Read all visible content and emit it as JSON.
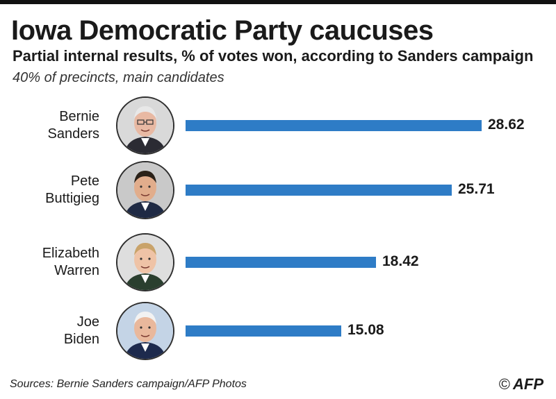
{
  "title": "Iowa Democratic Party caucuses",
  "subtitle": "Partial internal results, % of votes won, according to Sanders campaign",
  "note": "40% of precincts, main candidates",
  "source": "Sources: Bernie Sanders campaign/AFP Photos",
  "credit": {
    "copyright": "©",
    "logo": "AFP"
  },
  "colors": {
    "bar": "#2e7cc6"
  },
  "chart_data": {
    "type": "bar",
    "orientation": "horizontal",
    "categories": [
      "Bernie Sanders",
      "Pete Buttigieg",
      "Elizabeth Warren",
      "Joe Biden"
    ],
    "name_lines": [
      [
        "Bernie",
        "Sanders"
      ],
      [
        "Pete",
        "Buttigieg"
      ],
      [
        "Elizabeth",
        "Warren"
      ],
      [
        "Joe",
        "Biden"
      ]
    ],
    "values": [
      28.62,
      25.71,
      18.42,
      15.08
    ],
    "value_labels": [
      "28.62",
      "25.71",
      "18.42",
      "15.08"
    ],
    "unit": "%",
    "xlim": [
      0,
      28.62
    ],
    "grid": false,
    "legend": "none",
    "markers": [
      "portrait-sanders",
      "portrait-buttigieg",
      "portrait-warren",
      "portrait-biden"
    ]
  }
}
